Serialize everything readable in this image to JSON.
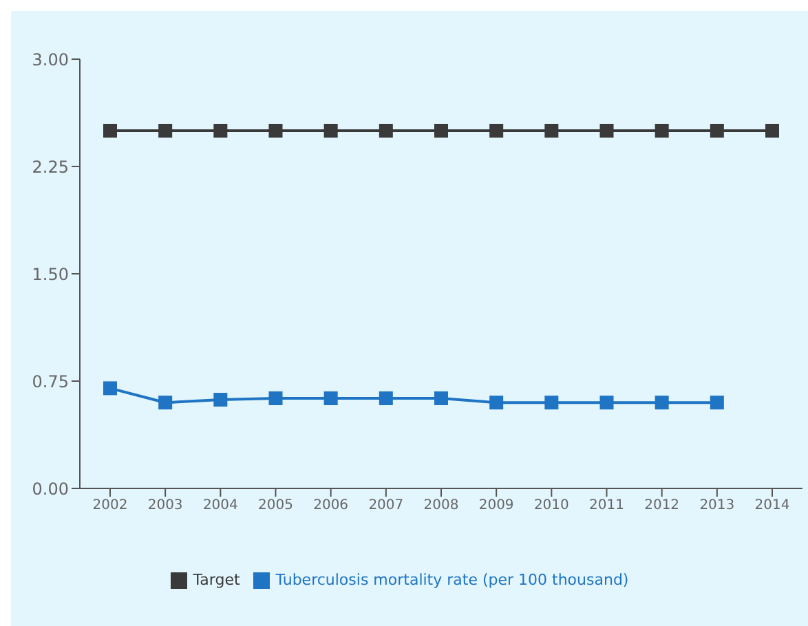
{
  "chart_data": {
    "type": "line",
    "categories": [
      "2002",
      "2003",
      "2004",
      "2005",
      "2006",
      "2007",
      "2008",
      "2009",
      "2010",
      "2011",
      "2012",
      "2013",
      "2014"
    ],
    "series": [
      {
        "name": "Target",
        "color": "#3a3a3a",
        "values": [
          2.5,
          2.5,
          2.5,
          2.5,
          2.5,
          2.5,
          2.5,
          2.5,
          2.5,
          2.5,
          2.5,
          2.5,
          2.5
        ]
      },
      {
        "name": "Tuberculosis mortality rate (per 100 thousand)",
        "color": "#1f75c4",
        "values": [
          0.7,
          0.6,
          0.62,
          0.63,
          0.63,
          0.63,
          0.63,
          0.6,
          0.6,
          0.6,
          0.6,
          0.6,
          null
        ]
      }
    ],
    "ylim": [
      0,
      3
    ],
    "yticks": [
      {
        "value": 0,
        "label": "0.00"
      },
      {
        "value": 0.75,
        "label": "0.75"
      },
      {
        "value": 1.5,
        "label": "1.50"
      },
      {
        "value": 2.25,
        "label": "2.25"
      },
      {
        "value": 3,
        "label": "3.00"
      }
    ],
    "grid": false,
    "legend": "bottom",
    "marker": "square",
    "line_style": "solid"
  }
}
